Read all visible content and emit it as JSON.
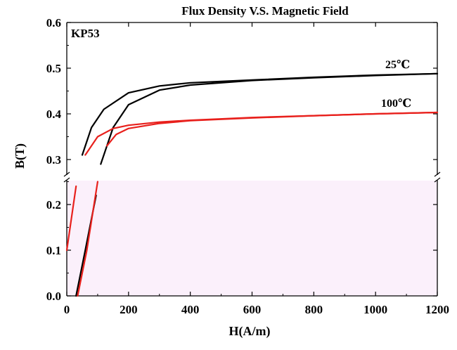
{
  "chart_data": {
    "type": "line",
    "title": "Flux Density V.S. Magnetic Field",
    "xlabel": "H(A/m)",
    "ylabel": "B(T)",
    "xlim": [
      0,
      1200
    ],
    "ylim": [
      0.0,
      0.6
    ],
    "axis_break": [
      0.25,
      0.265
    ],
    "x_ticks": [
      "0",
      "200",
      "400",
      "600",
      "800",
      "1000",
      "1200"
    ],
    "y_ticks": [
      "0.0",
      "0.1",
      "0.2",
      "0.3",
      "0.4",
      "0.5",
      "0.6"
    ],
    "annotations": [
      "KP53",
      "25℃",
      "100℃"
    ],
    "grid": false,
    "series": [
      {
        "name": "25℃",
        "color": "#000000",
        "upper": [
          [
            35,
            0.25
          ],
          [
            50,
            0.31
          ],
          [
            80,
            0.37
          ],
          [
            120,
            0.41
          ],
          [
            200,
            0.446
          ],
          [
            300,
            0.461
          ],
          [
            400,
            0.468
          ],
          [
            600,
            0.474
          ],
          [
            800,
            0.48
          ],
          [
            1000,
            0.485
          ],
          [
            1200,
            0.488
          ]
        ],
        "lower": [
          [
            30,
            0.0
          ],
          [
            60,
            0.1
          ],
          [
            95,
            0.22
          ],
          [
            110,
            0.29
          ],
          [
            150,
            0.37
          ],
          [
            200,
            0.42
          ],
          [
            300,
            0.452
          ],
          [
            400,
            0.463
          ],
          [
            600,
            0.473
          ],
          [
            800,
            0.479
          ],
          [
            1000,
            0.484
          ],
          [
            1200,
            0.488
          ]
        ]
      },
      {
        "name": "100℃",
        "color": "#e8201c",
        "upper": [
          [
            0,
            0.1
          ],
          [
            30,
            0.24
          ],
          [
            60,
            0.31
          ],
          [
            100,
            0.35
          ],
          [
            150,
            0.368
          ],
          [
            200,
            0.375
          ],
          [
            300,
            0.382
          ],
          [
            400,
            0.386
          ],
          [
            600,
            0.392
          ],
          [
            800,
            0.396
          ],
          [
            1000,
            0.4
          ],
          [
            1200,
            0.403
          ]
        ],
        "lower": [
          [
            35,
            0.0
          ],
          [
            65,
            0.1
          ],
          [
            100,
            0.25
          ],
          [
            130,
            0.33
          ],
          [
            160,
            0.355
          ],
          [
            200,
            0.368
          ],
          [
            300,
            0.379
          ],
          [
            400,
            0.385
          ],
          [
            600,
            0.391
          ],
          [
            800,
            0.396
          ],
          [
            1000,
            0.4
          ],
          [
            1200,
            0.403
          ]
        ]
      }
    ]
  }
}
